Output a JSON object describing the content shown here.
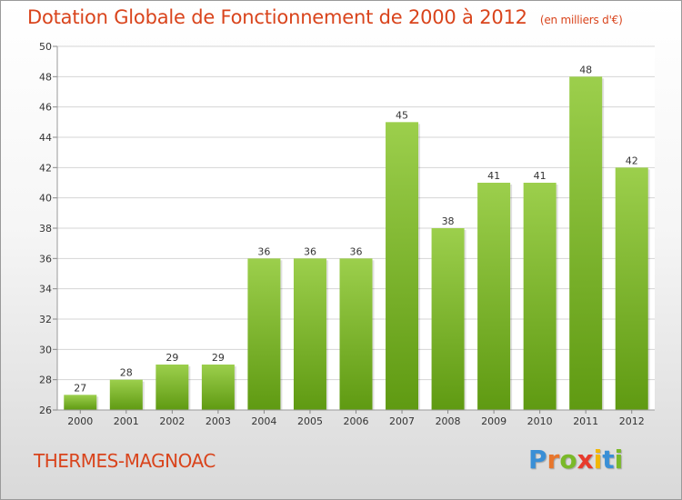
{
  "chart_data": {
    "type": "bar",
    "title": "Dotation Globale de Fonctionnement de 2000 à 2012",
    "subtitle": "(en milliers d'€)",
    "categories": [
      "2000",
      "2001",
      "2002",
      "2003",
      "2004",
      "2005",
      "2006",
      "2007",
      "2008",
      "2009",
      "2010",
      "2011",
      "2012"
    ],
    "values": [
      27,
      28,
      29,
      29,
      36,
      36,
      36,
      45,
      38,
      41,
      41,
      48,
      42
    ],
    "ylim": [
      26,
      50
    ],
    "yticks": [
      "26",
      "28",
      "30",
      "32",
      "34",
      "36",
      "38",
      "40",
      "42",
      "44",
      "46",
      "48",
      "50"
    ],
    "grid": true,
    "bar_color": "#8cc63f"
  },
  "commune": "THERMES-MAGNOAC",
  "logo": {
    "letters": [
      {
        "ch": "P",
        "color": "#3a8fd6"
      },
      {
        "ch": "r",
        "color": "#e8762c"
      },
      {
        "ch": "o",
        "color": "#7ab929"
      },
      {
        "ch": "x",
        "color": "#e83a2c"
      },
      {
        "ch": "i",
        "color": "#f2b705"
      },
      {
        "ch": "t",
        "color": "#3a8fd6"
      },
      {
        "ch": "i",
        "color": "#7ab929"
      }
    ]
  }
}
